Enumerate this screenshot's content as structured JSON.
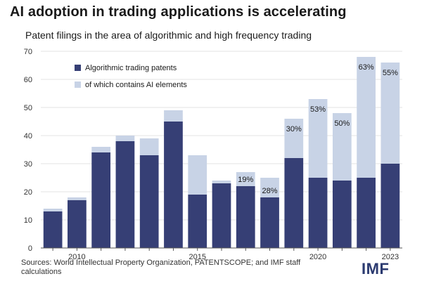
{
  "title": "AI adoption in trading applications is accelerating",
  "subtitle": "Patent filings in the area of algorithmic and high frequency trading",
  "source": "Sources: World Intellectual Property Organization, PATENTSCOPE; and IMF staff calculations",
  "logo_text": "IMF",
  "colors": {
    "algorithmic": "#363f75",
    "ai": "#c8d3e6",
    "grid": "#e3e3e3",
    "axis": "#555555"
  },
  "chart_data": {
    "type": "bar",
    "stacked": true,
    "x": [
      2009,
      2010,
      2011,
      2012,
      2013,
      2014,
      2015,
      2016,
      2017,
      2018,
      2019,
      2020,
      2021,
      2022,
      2023
    ],
    "x_tick_labels": [
      {
        "x": 2010,
        "label": "2010"
      },
      {
        "x": 2015,
        "label": "2015"
      },
      {
        "x": 2020,
        "label": "2020"
      },
      {
        "x": 2023,
        "label": "2023"
      }
    ],
    "series": [
      {
        "name": "Algorithmic trading patents",
        "values": [
          13,
          17,
          34,
          38,
          33,
          45,
          19,
          23,
          22,
          18,
          32,
          25,
          24,
          25,
          30
        ]
      },
      {
        "name": "of which contains AI elements",
        "values": [
          1,
          1,
          2,
          2,
          6,
          4,
          14,
          1,
          5,
          7,
          14,
          28,
          24,
          43,
          36
        ]
      }
    ],
    "bar_labels": [
      "",
      "",
      "",
      "",
      "",
      "",
      "",
      "",
      "19%",
      "28%",
      "30%",
      "53%",
      "50%",
      "63%",
      "55%"
    ],
    "ylim": [
      0,
      70
    ],
    "yticks": [
      0,
      10,
      20,
      30,
      40,
      50,
      60,
      70
    ],
    "legend_position": "top-left",
    "grid": true
  }
}
